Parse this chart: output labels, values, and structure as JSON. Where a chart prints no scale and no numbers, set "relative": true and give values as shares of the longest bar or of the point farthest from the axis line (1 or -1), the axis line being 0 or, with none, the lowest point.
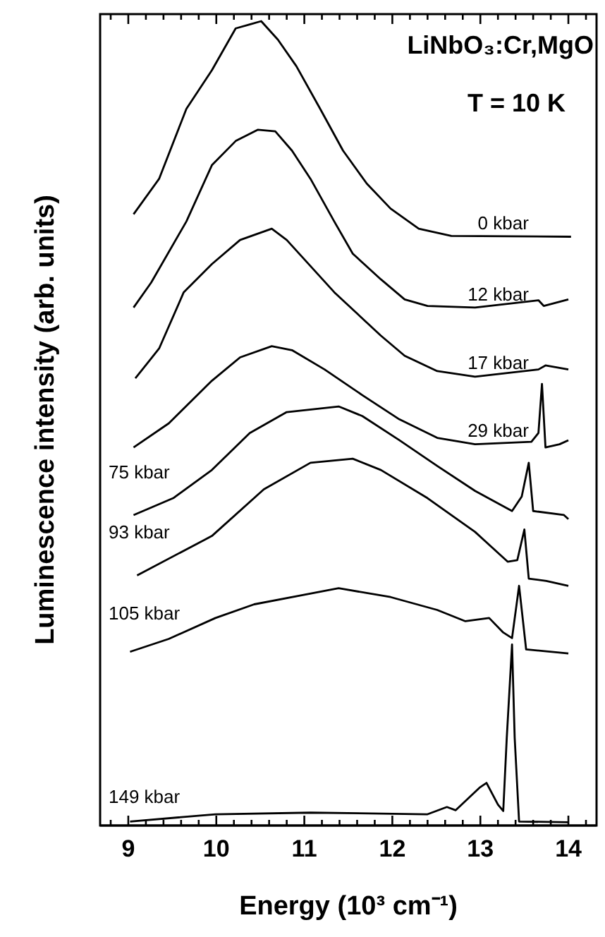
{
  "chart_data": {
    "type": "line",
    "relative": true,
    "xlabel": "Energy (10³ cm⁻¹)",
    "ylabel": "Luminescence intensity (arb. units)",
    "annotations": [
      "LiNbO₃:Cr,MgO",
      "T = 10 K"
    ],
    "xlim": [
      8.68,
      14.32
    ],
    "xticks": [
      {
        "value": 8.8,
        "label": null
      },
      9,
      {
        "value": 9.2,
        "label": null
      },
      {
        "value": 9.4,
        "label": null
      },
      {
        "value": 9.6,
        "label": null
      },
      {
        "value": 9.8,
        "label": null
      },
      10,
      {
        "value": 10.2,
        "label": null
      },
      {
        "value": 10.4,
        "label": null
      },
      {
        "value": 10.6,
        "label": null
      },
      {
        "value": 10.8,
        "label": null
      },
      11,
      {
        "value": 11.2,
        "label": null
      },
      {
        "value": 11.4,
        "label": null
      },
      {
        "value": 11.6,
        "label": null
      },
      {
        "value": 11.8,
        "label": null
      },
      12,
      {
        "value": 12.2,
        "label": null
      },
      {
        "value": 12.4,
        "label": null
      },
      {
        "value": 12.6,
        "label": null
      },
      {
        "value": 12.8,
        "label": null
      },
      13,
      {
        "value": 13.2,
        "label": null
      },
      {
        "value": 13.4,
        "label": null
      },
      {
        "value": 13.6,
        "label": null
      },
      {
        "value": 13.8,
        "label": null
      },
      14,
      {
        "value": 14.2,
        "label": null
      }
    ],
    "tick_labels": "x",
    "grid": false,
    "marker": "none",
    "line_style": "solid",
    "series": [
      {
        "name": "0 kbar",
        "color": "#000000",
        "x": [
          9.06,
          9.35,
          9.66,
          9.95,
          10.22,
          10.38,
          10.51,
          10.7,
          10.91,
          11.18,
          11.44,
          11.71,
          11.98,
          12.3,
          12.67,
          14.03
        ],
        "values": [
          0.76,
          0.804,
          0.891,
          0.939,
          0.991,
          0.996,
          1.0,
          0.977,
          0.944,
          0.891,
          0.839,
          0.798,
          0.767,
          0.742,
          0.733,
          0.732
        ]
      },
      {
        "name": "12 kbar",
        "color": "#000000",
        "x": [
          9.06,
          9.26,
          9.66,
          9.95,
          10.22,
          10.47,
          10.67,
          10.86,
          11.07,
          11.34,
          11.55,
          11.87,
          12.14,
          12.4,
          12.94,
          13.66,
          13.72,
          14.0
        ],
        "values": [
          0.644,
          0.675,
          0.751,
          0.821,
          0.851,
          0.865,
          0.863,
          0.839,
          0.804,
          0.751,
          0.711,
          0.679,
          0.654,
          0.646,
          0.644,
          0.653,
          0.646,
          0.654
        ]
      },
      {
        "name": "17 kbar",
        "color": "#000000",
        "x": [
          9.08,
          9.35,
          9.63,
          9.95,
          10.27,
          10.63,
          10.8,
          11.34,
          11.87,
          12.14,
          12.51,
          12.94,
          13.66,
          13.74,
          14.0
        ],
        "values": [
          0.556,
          0.593,
          0.663,
          0.698,
          0.728,
          0.742,
          0.728,
          0.663,
          0.609,
          0.584,
          0.565,
          0.558,
          0.567,
          0.572,
          0.567
        ]
      },
      {
        "name": "29 kbar",
        "color": "#000000",
        "x": [
          9.06,
          9.46,
          9.95,
          10.27,
          10.63,
          10.86,
          11.23,
          11.66,
          12.08,
          12.51,
          12.94,
          13.58,
          13.66,
          13.7,
          13.74,
          13.9,
          14.0
        ],
        "values": [
          0.47,
          0.5,
          0.553,
          0.582,
          0.596,
          0.591,
          0.567,
          0.535,
          0.505,
          0.482,
          0.474,
          0.477,
          0.488,
          0.549,
          0.47,
          0.474,
          0.479
        ]
      },
      {
        "name": "75 kbar",
        "color": "#000000",
        "x": [
          9.06,
          9.51,
          9.95,
          10.38,
          10.8,
          11.39,
          11.66,
          12.08,
          12.51,
          12.94,
          13.36,
          13.47,
          13.55,
          13.6,
          13.95,
          14.0
        ],
        "values": [
          0.386,
          0.407,
          0.442,
          0.488,
          0.514,
          0.521,
          0.509,
          0.479,
          0.447,
          0.416,
          0.391,
          0.409,
          0.451,
          0.391,
          0.386,
          0.381
        ]
      },
      {
        "name": "93 kbar",
        "color": "#000000",
        "x": [
          9.1,
          9.95,
          10.54,
          11.07,
          11.55,
          11.87,
          12.4,
          12.94,
          13.31,
          13.42,
          13.5,
          13.55,
          13.75,
          14.0
        ],
        "values": [
          0.311,
          0.36,
          0.418,
          0.451,
          0.456,
          0.442,
          0.407,
          0.365,
          0.328,
          0.33,
          0.368,
          0.307,
          0.304,
          0.298
        ]
      },
      {
        "name": "105 kbar",
        "color": "#000000",
        "x": [
          9.02,
          9.46,
          9.99,
          10.43,
          10.96,
          11.39,
          11.98,
          12.51,
          12.83,
          13.1,
          13.26,
          13.36,
          13.44,
          13.52,
          14.0
        ],
        "values": [
          0.216,
          0.232,
          0.258,
          0.275,
          0.286,
          0.295,
          0.284,
          0.268,
          0.254,
          0.258,
          0.24,
          0.233,
          0.298,
          0.219,
          0.214
        ]
      },
      {
        "name": "149 kbar",
        "color": "#000000",
        "x": [
          9.02,
          9.99,
          11.07,
          12.4,
          12.62,
          12.72,
          12.99,
          13.07,
          13.2,
          13.26,
          13.3,
          13.36,
          13.39,
          13.44,
          14.0
        ],
        "values": [
          0.005,
          0.014,
          0.016,
          0.014,
          0.023,
          0.019,
          0.047,
          0.053,
          0.026,
          0.018,
          0.109,
          0.225,
          0.109,
          0.005,
          0.004
        ]
      }
    ]
  }
}
